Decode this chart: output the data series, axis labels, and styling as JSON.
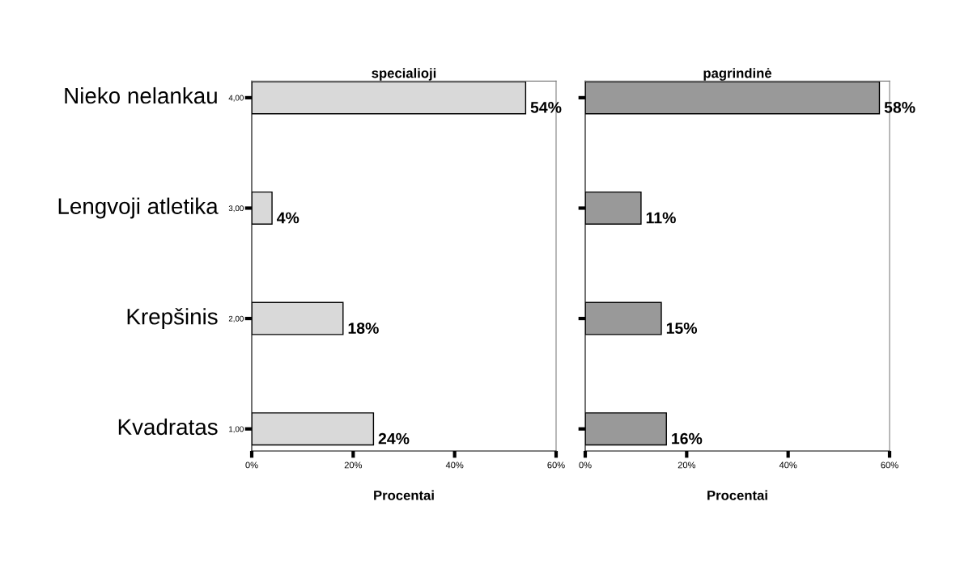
{
  "chart_data": [
    {
      "type": "bar",
      "orientation": "horizontal",
      "title": "specialioji",
      "xlabel": "Procentai",
      "categories": [
        "Nieko nelankau",
        "Lengvoji atletika",
        "Krepšinis",
        "Kvadratas"
      ],
      "series": [
        {
          "color": "#d9d9d9",
          "values": [
            54,
            4,
            18,
            24
          ],
          "value_labels": [
            "54%",
            "4%",
            "18%",
            "24%"
          ]
        }
      ],
      "xlim": [
        0,
        60
      ],
      "xticks": [
        {
          "value": 0,
          "label": "0%"
        },
        {
          "value": 20,
          "label": "20%"
        },
        {
          "value": 40,
          "label": "40%"
        },
        {
          "value": 60,
          "label": "60%"
        }
      ],
      "annotations": [
        "4,00",
        "3,00",
        "2,00",
        "1,00"
      ],
      "grid": false
    },
    {
      "type": "bar",
      "orientation": "horizontal",
      "title": "pagrindinė",
      "xlabel": "Procentai",
      "categories": [
        null,
        null,
        null,
        null
      ],
      "series": [
        {
          "color": "#999999",
          "values": [
            58,
            11,
            15,
            16
          ],
          "value_labels": [
            "58%",
            "11%",
            "15%",
            "16%"
          ]
        }
      ],
      "xlim": [
        0,
        60
      ],
      "xticks": [
        {
          "value": 0,
          "label": "0%"
        },
        {
          "value": 20,
          "label": "20%"
        },
        {
          "value": 40,
          "label": "40%"
        },
        {
          "value": 60,
          "label": "60%"
        }
      ],
      "tick_labels": "x",
      "grid": false
    }
  ]
}
